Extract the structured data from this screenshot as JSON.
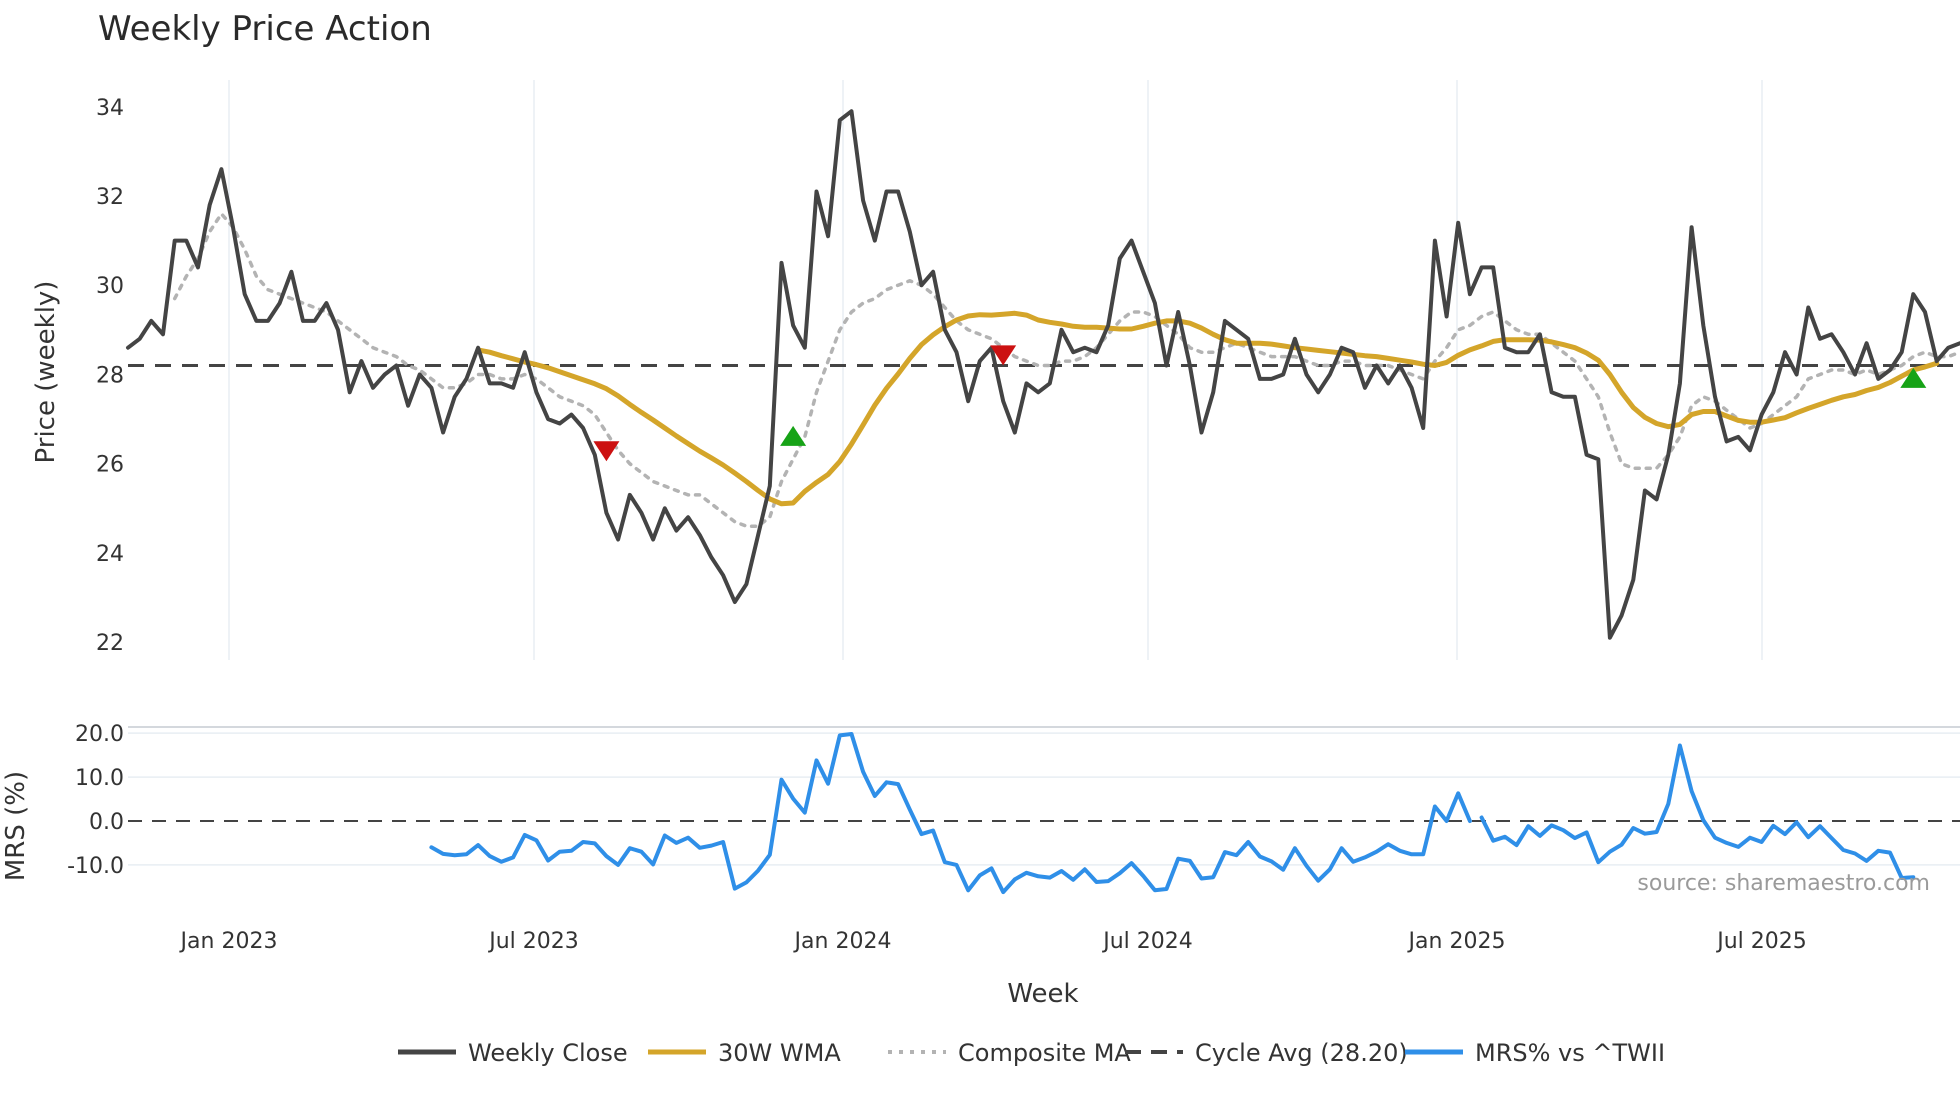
{
  "chart_data": {
    "type": "line",
    "title": "Weekly Price Action",
    "xlabel": "Week",
    "source": "source: sharemaestro.com",
    "x_ticks": [
      "Jan 2023",
      "Jul 2023",
      "Jan 2024",
      "Jul 2024",
      "Jan 2025",
      "Jul 2025"
    ],
    "price_panel": {
      "ylabel": "Price (weekly)",
      "ylim": [
        21.6,
        34.6
      ],
      "y_ticks": [
        "22",
        "24",
        "26",
        "28",
        "30",
        "32",
        "34"
      ],
      "cycle_avg": 28.2,
      "series": [
        {
          "name": "Weekly Close",
          "color": "#444444",
          "values": [
            28.6,
            28.8,
            29.2,
            28.9,
            31.0,
            31.0,
            30.4,
            31.8,
            32.6,
            31.3,
            29.8,
            29.2,
            29.2,
            29.6,
            30.3,
            29.2,
            29.2,
            29.6,
            29.0,
            27.6,
            28.3,
            27.7,
            28.0,
            28.2,
            27.3,
            28.0,
            27.7,
            26.7,
            27.5,
            27.9,
            28.6,
            27.8,
            27.8,
            27.7,
            28.5,
            27.6,
            27.0,
            26.9,
            27.1,
            26.8,
            26.2,
            24.9,
            24.3,
            25.3,
            24.9,
            24.3,
            25.0,
            24.5,
            24.8,
            24.4,
            23.9,
            23.5,
            22.9,
            23.3,
            24.4,
            25.5,
            30.5,
            29.1,
            28.6,
            32.1,
            31.1,
            33.7,
            33.9,
            31.9,
            31.0,
            32.1,
            32.1,
            31.2,
            30.0,
            30.3,
            29.0,
            28.5,
            27.4,
            28.3,
            28.6,
            27.4,
            26.7,
            27.8,
            27.6,
            27.8,
            29.0,
            28.5,
            28.6,
            28.5,
            29.1,
            30.6,
            31.0,
            30.3,
            29.6,
            28.2,
            29.4,
            28.2,
            26.7,
            27.6,
            29.2,
            29.0,
            28.8,
            27.9,
            27.9,
            28.0,
            28.8,
            28.0,
            27.6,
            28.0,
            28.6,
            28.5,
            27.7,
            28.2,
            27.8,
            28.2,
            27.7,
            26.8,
            31.0,
            29.3,
            31.4,
            29.8,
            30.4,
            30.4,
            28.6,
            28.5,
            28.5,
            28.9,
            27.6,
            27.5,
            27.5,
            26.2,
            26.1,
            22.1,
            22.6,
            23.4,
            25.4,
            25.2,
            26.2,
            27.8,
            31.3,
            29.1,
            27.5,
            26.5,
            26.6,
            26.3,
            27.1,
            27.6,
            28.5,
            28.0,
            29.5,
            28.8,
            28.9,
            28.5,
            28.0,
            28.7,
            27.9,
            28.1,
            28.5,
            29.8,
            29.4,
            28.3,
            28.6,
            28.7
          ]
        },
        {
          "name": "30W WMA",
          "color": "#D4A52A",
          "start_index": 30,
          "values": [
            28.55,
            28.5,
            28.42,
            28.35,
            28.28,
            28.22,
            28.15,
            28.06,
            27.97,
            27.88,
            27.79,
            27.68,
            27.52,
            27.33,
            27.15,
            26.98,
            26.8,
            26.62,
            26.45,
            26.28,
            26.13,
            25.97,
            25.79,
            25.6,
            25.4,
            25.21,
            25.1,
            25.12,
            25.38,
            25.58,
            25.76,
            26.05,
            26.44,
            26.87,
            27.31,
            27.69,
            28.01,
            28.36,
            28.67,
            28.89,
            29.07,
            29.22,
            29.31,
            29.34,
            29.33,
            29.35,
            29.37,
            29.33,
            29.22,
            29.17,
            29.13,
            29.08,
            29.06,
            29.06,
            29.04,
            29.02,
            29.02,
            29.08,
            29.15,
            29.2,
            29.2,
            29.15,
            29.04,
            28.9,
            28.78,
            28.7,
            28.7,
            28.7,
            28.68,
            28.64,
            28.6,
            28.57,
            28.54,
            28.51,
            28.48,
            28.45,
            28.42,
            28.4,
            28.36,
            28.32,
            28.28,
            28.23,
            28.2,
            28.27,
            28.43,
            28.55,
            28.64,
            28.74,
            28.78,
            28.78,
            28.78,
            28.77,
            28.73,
            28.67,
            28.6,
            28.48,
            28.32,
            28.0,
            27.6,
            27.26,
            27.04,
            26.9,
            26.83,
            26.88,
            27.1,
            27.17,
            27.17,
            27.07,
            26.97,
            26.93,
            26.93,
            26.98,
            27.03,
            27.14,
            27.24,
            27.33,
            27.42,
            27.5,
            27.55,
            27.64,
            27.71,
            27.82,
            27.96,
            28.1,
            28.17,
            28.25
          ]
        },
        {
          "name": "Composite MA",
          "color": "#b3b3b3",
          "values": [
            null,
            null,
            null,
            null,
            29.7,
            30.2,
            30.6,
            31.2,
            31.6,
            31.3,
            30.8,
            30.2,
            29.9,
            29.8,
            29.7,
            29.6,
            29.5,
            29.4,
            29.2,
            29.0,
            28.8,
            28.6,
            28.5,
            28.4,
            28.2,
            28.1,
            27.9,
            27.7,
            27.7,
            27.8,
            28.0,
            28.0,
            27.9,
            27.9,
            28.0,
            27.9,
            27.7,
            27.5,
            27.4,
            27.3,
            27.1,
            26.7,
            26.3,
            26.0,
            25.8,
            25.6,
            25.5,
            25.4,
            25.3,
            25.3,
            25.1,
            24.9,
            24.7,
            24.6,
            24.6,
            24.8,
            25.6,
            26.1,
            26.6,
            27.6,
            28.3,
            29.0,
            29.4,
            29.6,
            29.7,
            29.9,
            30.0,
            30.1,
            30.0,
            29.8,
            29.5,
            29.2,
            29.0,
            28.9,
            28.8,
            28.6,
            28.4,
            28.3,
            28.2,
            28.2,
            28.3,
            28.3,
            28.4,
            28.6,
            28.9,
            29.2,
            29.4,
            29.4,
            29.3,
            29.1,
            28.9,
            28.6,
            28.5,
            28.5,
            28.6,
            28.7,
            28.6,
            28.5,
            28.4,
            28.4,
            28.4,
            28.3,
            28.2,
            28.2,
            28.3,
            28.3,
            28.2,
            28.2,
            28.2,
            28.1,
            28.0,
            27.9,
            28.3,
            28.6,
            29.0,
            29.1,
            29.3,
            29.4,
            29.2,
            29.0,
            28.9,
            28.9,
            28.7,
            28.5,
            28.3,
            27.9,
            27.5,
            26.7,
            26.0,
            25.9,
            25.9,
            25.9,
            26.2,
            26.6,
            27.3,
            27.5,
            27.4,
            27.2,
            27.0,
            26.8,
            26.9,
            27.1,
            27.3,
            27.5,
            27.9,
            28.0,
            28.1,
            28.1,
            28.0,
            28.1,
            28.0,
            28.1,
            28.2,
            28.4,
            28.5,
            28.4,
            28.4,
            28.5
          ]
        }
      ],
      "markers": [
        {
          "type": "sell",
          "index": 41,
          "value": 26.3,
          "color": "#cc1111"
        },
        {
          "type": "buy",
          "index": 57,
          "value": 26.6,
          "color": "#17a317"
        },
        {
          "type": "sell",
          "index": 75,
          "value": 28.45,
          "color": "#cc1111"
        },
        {
          "type": "buy",
          "index": 153,
          "value": 27.9,
          "color": "#17a317"
        }
      ]
    },
    "mrs_panel": {
      "ylabel": "MRS (%)",
      "ylim": [
        -18,
        23
      ],
      "y_ticks": [
        "-10.0",
        "0.0",
        "10.0",
        "20.0"
      ],
      "series": {
        "name": "MRS% vs ^TWII",
        "color": "#2f8fe8",
        "start_index": 26,
        "gap_after_index": 115,
        "values": [
          -6.0,
          -7.5,
          -7.8,
          -7.6,
          -5.5,
          -8.0,
          -9.3,
          -8.3,
          -3.2,
          -4.4,
          -9.0,
          -7.0,
          -6.8,
          -4.8,
          -5.1,
          -8.0,
          -10.0,
          -6.2,
          -7.0,
          -9.9,
          -3.3,
          -5.0,
          -3.8,
          -6.1,
          -5.6,
          -4.8,
          -15.4,
          -14.0,
          -11.3,
          -7.7,
          9.4,
          5.1,
          1.9,
          13.8,
          8.5,
          19.5,
          19.8,
          11.2,
          5.7,
          8.8,
          8.4,
          2.6,
          -3.0,
          -2.2,
          -9.4,
          -10.0,
          -15.8,
          -12.4,
          -10.8,
          -16.2,
          -13.3,
          -11.8,
          -12.6,
          -12.9,
          -11.4,
          -13.4,
          -11.0,
          -13.9,
          -13.7,
          -11.9,
          -9.6,
          -12.5,
          -15.8,
          -15.5,
          -8.6,
          -9.1,
          -13.1,
          -12.8,
          -7.1,
          -7.8,
          -4.8,
          -8.1,
          -9.2,
          -11.1,
          -6.2,
          -10.2,
          -13.6,
          -11.0,
          -6.2,
          -9.3,
          -8.3,
          -7.0,
          -5.3,
          -6.8,
          -7.6,
          -7.6,
          3.3,
          0.0,
          6.3,
          0.0,
          0.8,
          -4.5,
          -3.6,
          -5.5,
          -1.2,
          -3.4,
          -1.0,
          -2.1,
          -3.9,
          -2.6,
          -9.4,
          -7.0,
          -5.4,
          -1.6,
          -2.9,
          -2.5,
          3.9,
          17.2,
          6.8,
          0.2,
          -3.8,
          -5.0,
          -5.9,
          -3.8,
          -4.8,
          -1.1,
          -3.0,
          -0.3,
          -3.7,
          -1.2,
          -3.9,
          -6.6,
          -7.4,
          -9.1,
          -6.8,
          -7.2,
          -13.0,
          -12.8
        ]
      }
    },
    "legend": [
      {
        "label": "Weekly Close",
        "color": "#444444",
        "style": "solid"
      },
      {
        "label": "30W WMA",
        "color": "#D4A52A",
        "style": "solid"
      },
      {
        "label": "Composite MA",
        "color": "#b3b3b3",
        "style": "dotted"
      },
      {
        "label": "Cycle Avg (28.20)",
        "color": "#444444",
        "style": "dashed"
      },
      {
        "label": "MRS% vs ^TWII",
        "color": "#2f8fe8",
        "style": "solid"
      }
    ]
  }
}
